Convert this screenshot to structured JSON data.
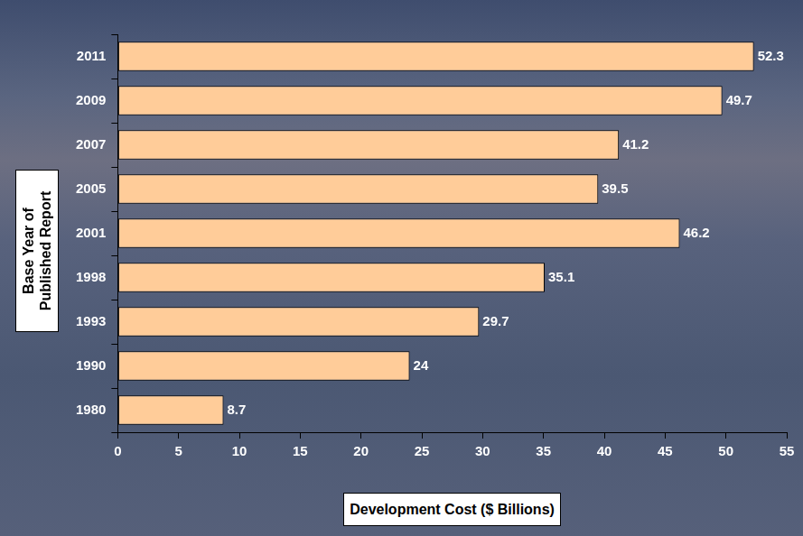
{
  "chart_data": {
    "type": "bar",
    "orientation": "horizontal",
    "categories": [
      "2011",
      "2009",
      "2007",
      "2005",
      "2001",
      "1998",
      "1993",
      "1990",
      "1980"
    ],
    "values": [
      52.3,
      49.7,
      41.2,
      39.5,
      46.2,
      35.1,
      29.7,
      24,
      8.7
    ],
    "color": "#ffcc99",
    "xlabel": "Development Cost ($ Billions)",
    "ylabel": "Base Year of Published Report",
    "xlim": [
      0,
      55
    ],
    "xticks": [
      0,
      5,
      10,
      15,
      20,
      25,
      30,
      35,
      40,
      45,
      50,
      55
    ],
    "grid": false,
    "data_labels": true
  }
}
